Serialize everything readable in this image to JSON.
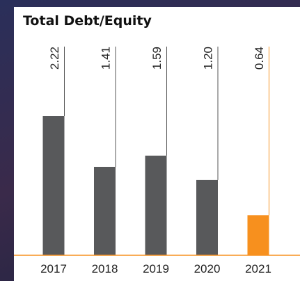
{
  "chart_data": {
    "type": "bar",
    "title": "Total Debt/Equity",
    "categories": [
      "2017",
      "2018",
      "2019",
      "2020",
      "2021"
    ],
    "values": [
      2.22,
      1.41,
      1.59,
      1.2,
      0.64
    ],
    "value_labels": [
      "2.22",
      "1.41",
      "1.59",
      "1.20",
      "0.64"
    ],
    "colors": [
      "#58595b",
      "#58595b",
      "#58595b",
      "#58595b",
      "#f7901e"
    ],
    "baseline_color": "#f7901e"
  }
}
